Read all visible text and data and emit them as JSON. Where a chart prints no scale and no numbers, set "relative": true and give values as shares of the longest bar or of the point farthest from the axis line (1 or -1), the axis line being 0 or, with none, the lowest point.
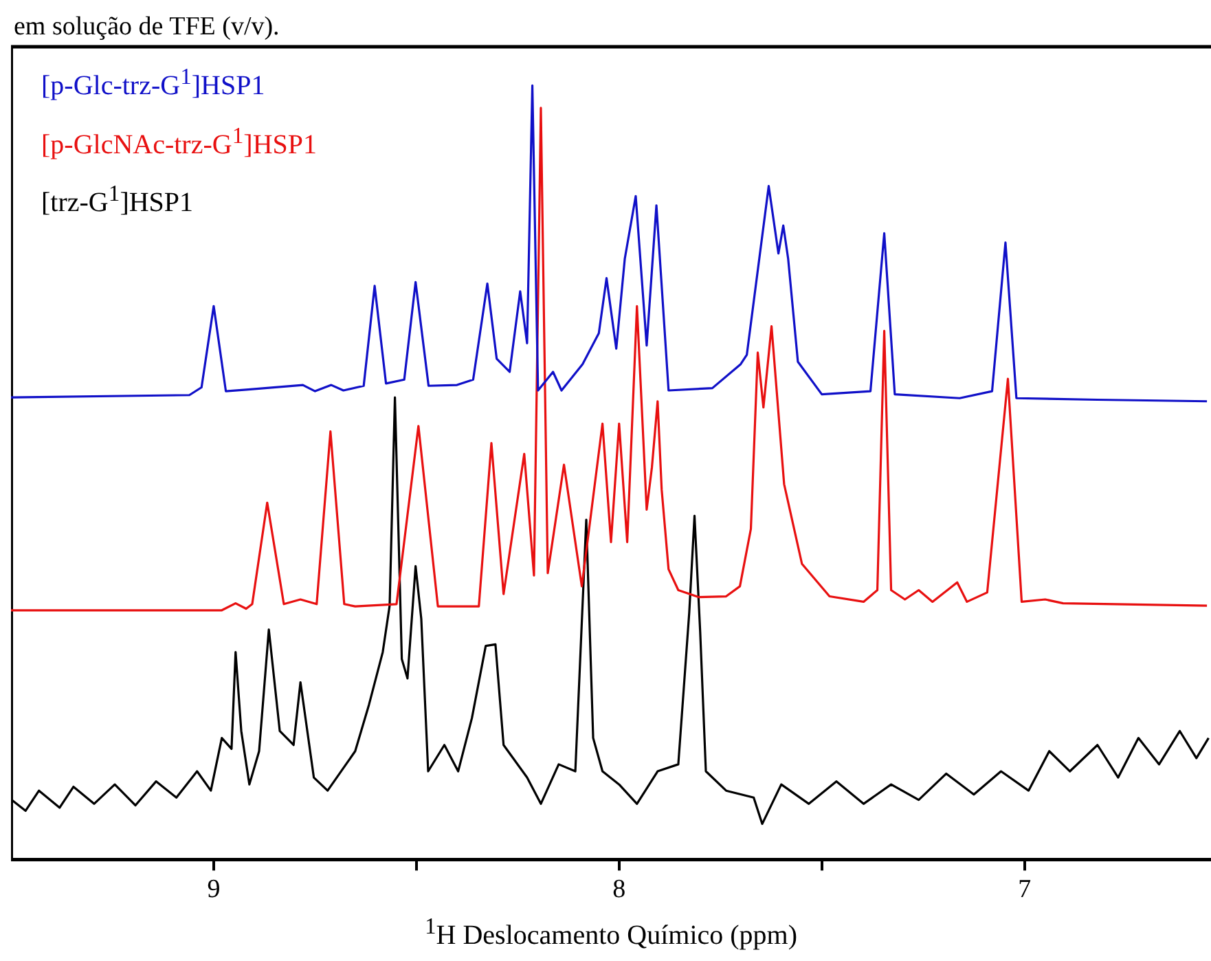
{
  "chart_data": {
    "type": "line",
    "relative": true,
    "xlabel": "$^{1}$H Deslocamento Químico (ppm)",
    "annotations": [
      "em solução de TFE (v/v)."
    ],
    "xlim": [
      9.5,
      6.54
    ],
    "xticks": [
      9,
      {
        "value": 8.5,
        "label": null
      },
      8,
      {
        "value": 7.5,
        "label": null
      },
      7
    ],
    "legend": "top left",
    "marker": "none",
    "line_style": "solid",
    "grid": false,
    "tick_labels": "x",
    "series": [
      {
        "name": "[p-Glc-trz-G$^{1}$]HSP1",
        "color": "#1010c8",
        "x": [
          9.5,
          9.06,
          9.03,
          9.0,
          8.97,
          8.92,
          8.78,
          8.75,
          8.71,
          8.68,
          8.63,
          8.603,
          8.575,
          8.53,
          8.502,
          8.47,
          8.4,
          8.36,
          8.325,
          8.302,
          8.27,
          8.244,
          8.227,
          8.214,
          8.2,
          8.163,
          8.142,
          8.09,
          8.05,
          8.031,
          8.007,
          7.986,
          7.959,
          7.932,
          7.908,
          7.878,
          7.77,
          7.7,
          7.685,
          7.631,
          7.607,
          7.595,
          7.583,
          7.559,
          7.5,
          7.38,
          7.346,
          7.32,
          7.16,
          7.08,
          7.047,
          7.02,
          6.82,
          6.55
        ],
        "values": [
          0.597,
          0.6,
          0.61,
          0.715,
          0.605,
          0.607,
          0.613,
          0.605,
          0.613,
          0.606,
          0.612,
          0.741,
          0.615,
          0.62,
          0.746,
          0.612,
          0.613,
          0.62,
          0.744,
          0.647,
          0.63,
          0.734,
          0.667,
          1.0,
          0.606,
          0.63,
          0.606,
          0.64,
          0.68,
          0.751,
          0.66,
          0.776,
          0.857,
          0.664,
          0.845,
          0.606,
          0.609,
          0.64,
          0.652,
          0.87,
          0.783,
          0.819,
          0.776,
          0.643,
          0.601,
          0.605,
          0.809,
          0.601,
          0.596,
          0.605,
          0.797,
          0.596,
          0.594,
          0.592
        ]
      },
      {
        "name": "[p-GlcNAc-trz-G$^{1}$]HSP1",
        "color": "#e81010",
        "x": [
          9.5,
          8.98,
          8.946,
          8.92,
          8.905,
          8.868,
          8.827,
          8.786,
          8.746,
          8.712,
          8.678,
          8.651,
          8.549,
          8.495,
          8.447,
          8.346,
          8.315,
          8.285,
          8.234,
          8.21,
          8.193,
          8.176,
          8.136,
          8.092,
          8.041,
          8.02,
          8.0,
          7.98,
          7.956,
          7.932,
          7.919,
          7.905,
          7.895,
          7.878,
          7.854,
          7.803,
          7.736,
          7.702,
          7.675,
          7.658,
          7.644,
          7.624,
          7.593,
          7.549,
          7.481,
          7.397,
          7.363,
          7.346,
          7.329,
          7.295,
          7.261,
          7.227,
          7.166,
          7.142,
          7.092,
          7.041,
          7.007,
          6.949,
          6.905,
          6.55
        ],
        "values": [
          0.322,
          0.322,
          0.331,
          0.324,
          0.33,
          0.461,
          0.33,
          0.336,
          0.33,
          0.553,
          0.33,
          0.327,
          0.33,
          0.56,
          0.327,
          0.327,
          0.538,
          0.343,
          0.524,
          0.367,
          0.971,
          0.37,
          0.51,
          0.353,
          0.563,
          0.41,
          0.563,
          0.41,
          0.715,
          0.452,
          0.507,
          0.592,
          0.478,
          0.375,
          0.348,
          0.339,
          0.34,
          0.353,
          0.427,
          0.655,
          0.584,
          0.689,
          0.485,
          0.382,
          0.34,
          0.333,
          0.348,
          0.683,
          0.348,
          0.336,
          0.348,
          0.333,
          0.358,
          0.333,
          0.345,
          0.621,
          0.333,
          0.336,
          0.331,
          0.328
        ]
      },
      {
        "name": "[trz-G$^{1}$]HSP1",
        "color": "#000000",
        "x": [
          9.498,
          9.464,
          9.431,
          9.38,
          9.346,
          9.295,
          9.244,
          9.193,
          9.142,
          9.092,
          9.041,
          9.007,
          8.98,
          8.956,
          8.946,
          8.932,
          8.912,
          8.888,
          8.864,
          8.837,
          8.803,
          8.786,
          8.753,
          8.719,
          8.651,
          8.617,
          8.583,
          8.566,
          8.553,
          8.536,
          8.522,
          8.502,
          8.488,
          8.471,
          8.431,
          8.397,
          8.363,
          8.329,
          8.305,
          8.285,
          8.227,
          8.193,
          8.149,
          8.108,
          8.081,
          8.064,
          8.041,
          8.0,
          7.956,
          7.905,
          7.854,
          7.827,
          7.814,
          7.8,
          7.786,
          7.736,
          7.668,
          7.647,
          7.6,
          7.532,
          7.464,
          7.397,
          7.329,
          7.261,
          7.193,
          7.125,
          7.058,
          6.99,
          6.939,
          6.888,
          6.82,
          6.769,
          6.719,
          6.668,
          6.617,
          6.576,
          6.546
        ],
        "values": [
          0.077,
          0.063,
          0.089,
          0.067,
          0.094,
          0.072,
          0.097,
          0.07,
          0.101,
          0.08,
          0.114,
          0.089,
          0.157,
          0.143,
          0.268,
          0.166,
          0.097,
          0.14,
          0.297,
          0.166,
          0.148,
          0.229,
          0.106,
          0.089,
          0.14,
          0.2,
          0.268,
          0.328,
          0.597,
          0.259,
          0.234,
          0.379,
          0.311,
          0.114,
          0.148,
          0.114,
          0.183,
          0.276,
          0.278,
          0.148,
          0.106,
          0.072,
          0.123,
          0.114,
          0.439,
          0.157,
          0.114,
          0.097,
          0.072,
          0.114,
          0.123,
          0.319,
          0.444,
          0.294,
          0.114,
          0.089,
          0.08,
          0.046,
          0.097,
          0.072,
          0.101,
          0.072,
          0.097,
          0.077,
          0.111,
          0.084,
          0.114,
          0.089,
          0.14,
          0.114,
          0.148,
          0.106,
          0.157,
          0.123,
          0.166,
          0.131,
          0.157
        ]
      }
    ]
  }
}
